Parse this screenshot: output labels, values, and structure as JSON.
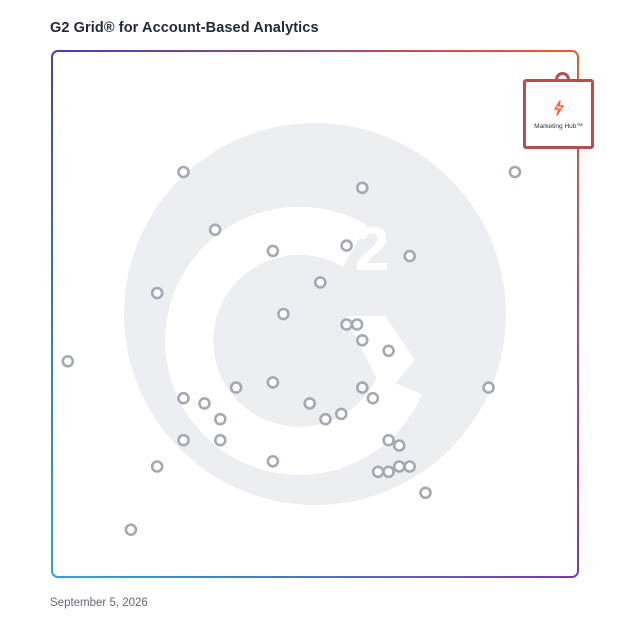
{
  "title": "G2 Grid® for Account-Based Analytics",
  "date": "September 5, 2026",
  "colors": {
    "frame_top_left": "#4a3fb8",
    "frame_top_right": "#ef5a2f",
    "frame_bottom_left": "#2aa6d9",
    "frame_bottom_right": "#7a3bb0",
    "dot": "#a4a9b3",
    "highlight": "#b64e4e",
    "watermark": "#eceef1"
  },
  "chart_data": {
    "type": "scatter",
    "title": "G2 Grid® for Account-Based Analytics",
    "xlabel": "",
    "ylabel": "",
    "xlim": [
      0,
      100
    ],
    "ylim": [
      0,
      100
    ],
    "grid": "quadrants",
    "highlighted": {
      "label": "Marketing Hub™",
      "icon": "hubspot-sprocket-icon",
      "x": 96,
      "y": 90
    },
    "points": [
      {
        "x": 88,
        "y": 77
      },
      {
        "x": 25,
        "y": 77
      },
      {
        "x": 59,
        "y": 74
      },
      {
        "x": 31,
        "y": 66
      },
      {
        "x": 42,
        "y": 62
      },
      {
        "x": 56,
        "y": 63
      },
      {
        "x": 68,
        "y": 61
      },
      {
        "x": 51,
        "y": 56
      },
      {
        "x": 20,
        "y": 54
      },
      {
        "x": 44,
        "y": 50
      },
      {
        "x": 56,
        "y": 48
      },
      {
        "x": 58,
        "y": 48
      },
      {
        "x": 59,
        "y": 45
      },
      {
        "x": 64,
        "y": 43
      },
      {
        "x": 3,
        "y": 41
      },
      {
        "x": 42,
        "y": 37
      },
      {
        "x": 35,
        "y": 36
      },
      {
        "x": 59,
        "y": 36
      },
      {
        "x": 83,
        "y": 36
      },
      {
        "x": 25,
        "y": 34
      },
      {
        "x": 29,
        "y": 33
      },
      {
        "x": 49,
        "y": 33
      },
      {
        "x": 61,
        "y": 34
      },
      {
        "x": 32,
        "y": 30
      },
      {
        "x": 52,
        "y": 30
      },
      {
        "x": 55,
        "y": 31
      },
      {
        "x": 25,
        "y": 26
      },
      {
        "x": 32,
        "y": 26
      },
      {
        "x": 64,
        "y": 26
      },
      {
        "x": 66,
        "y": 25
      },
      {
        "x": 20,
        "y": 21
      },
      {
        "x": 42,
        "y": 22
      },
      {
        "x": 62,
        "y": 20
      },
      {
        "x": 64,
        "y": 20
      },
      {
        "x": 66,
        "y": 21
      },
      {
        "x": 68,
        "y": 21
      },
      {
        "x": 71,
        "y": 16
      },
      {
        "x": 15,
        "y": 9
      }
    ]
  }
}
